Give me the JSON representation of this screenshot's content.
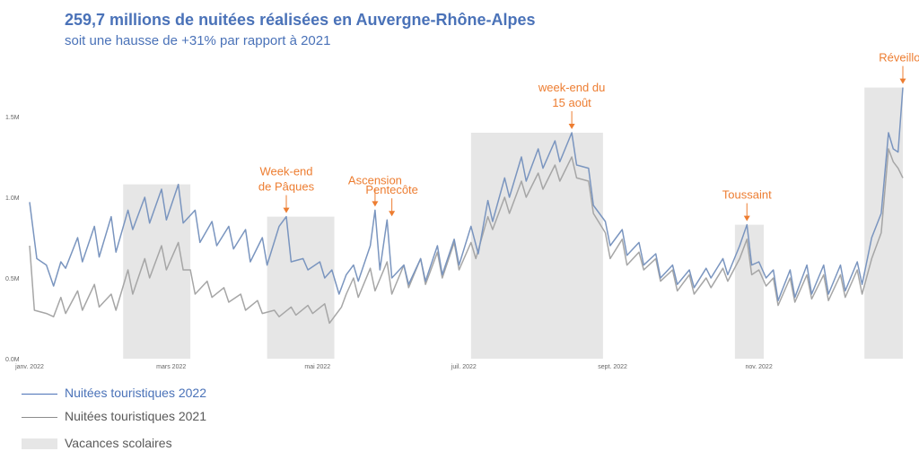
{
  "header": {
    "title": "259,7 millions de nuitées réalisées en Auvergne-Rhône-Alpes",
    "subtitle": "soit une hausse de +31% par rapport à 2021"
  },
  "legend": {
    "series_2022": "Nuitées touristiques 2022",
    "series_2021": "Nuitées touristiques 2021",
    "holidays": "Vacances scolaires"
  },
  "colors": {
    "series_2022": "#7a95bf",
    "series_2021": "#a6a6a6",
    "holidays": "#e6e6e6",
    "annotation": "#ed7d31",
    "title": "#4a72b8"
  },
  "chart_data": {
    "type": "line",
    "title": "",
    "xlabel": "",
    "ylabel": "",
    "ylim": [
      0,
      1.8
    ],
    "y_ticks": [
      "0.0M",
      "0.5M",
      "1.0M",
      "1.5M"
    ],
    "y_tick_values": [
      0,
      0.5,
      1.0,
      1.5
    ],
    "x_ticks": [
      {
        "day": 1,
        "label": "janv. 2022"
      },
      {
        "day": 60,
        "label": "mars 2022"
      },
      {
        "day": 121,
        "label": "mai 2022"
      },
      {
        "day": 182,
        "label": "juil. 2022"
      },
      {
        "day": 244,
        "label": "sept. 2022"
      },
      {
        "day": 305,
        "label": "nov. 2022"
      }
    ],
    "x_range": [
      1,
      365
    ],
    "holiday_periods": [
      {
        "start": 40,
        "end": 68,
        "top": 1.08
      },
      {
        "start": 100,
        "end": 128,
        "top": 0.88
      },
      {
        "start": 185,
        "end": 240,
        "top": 1.4
      },
      {
        "start": 295,
        "end": 307,
        "top": 0.83
      },
      {
        "start": 349,
        "end": 365,
        "top": 1.68
      }
    ],
    "series": [
      {
        "name": "Nuitées touristiques 2022",
        "points": [
          [
            1,
            0.97
          ],
          [
            4,
            0.62
          ],
          [
            8,
            0.58
          ],
          [
            11,
            0.45
          ],
          [
            14,
            0.6
          ],
          [
            16,
            0.56
          ],
          [
            21,
            0.75
          ],
          [
            23,
            0.6
          ],
          [
            28,
            0.82
          ],
          [
            30,
            0.63
          ],
          [
            35,
            0.88
          ],
          [
            37,
            0.66
          ],
          [
            42,
            0.92
          ],
          [
            44,
            0.8
          ],
          [
            49,
            1.0
          ],
          [
            51,
            0.84
          ],
          [
            56,
            1.05
          ],
          [
            58,
            0.86
          ],
          [
            63,
            1.08
          ],
          [
            65,
            0.84
          ],
          [
            70,
            0.92
          ],
          [
            72,
            0.72
          ],
          [
            77,
            0.85
          ],
          [
            79,
            0.7
          ],
          [
            84,
            0.82
          ],
          [
            86,
            0.68
          ],
          [
            91,
            0.8
          ],
          [
            93,
            0.6
          ],
          [
            98,
            0.75
          ],
          [
            100,
            0.58
          ],
          [
            105,
            0.82
          ],
          [
            108,
            0.88
          ],
          [
            110,
            0.6
          ],
          [
            115,
            0.62
          ],
          [
            117,
            0.55
          ],
          [
            122,
            0.6
          ],
          [
            124,
            0.5
          ],
          [
            127,
            0.55
          ],
          [
            130,
            0.4
          ],
          [
            133,
            0.52
          ],
          [
            136,
            0.58
          ],
          [
            138,
            0.48
          ],
          [
            143,
            0.7
          ],
          [
            145,
            0.92
          ],
          [
            147,
            0.55
          ],
          [
            150,
            0.86
          ],
          [
            152,
            0.5
          ],
          [
            157,
            0.58
          ],
          [
            159,
            0.46
          ],
          [
            164,
            0.62
          ],
          [
            166,
            0.48
          ],
          [
            171,
            0.7
          ],
          [
            173,
            0.52
          ],
          [
            178,
            0.74
          ],
          [
            180,
            0.58
          ],
          [
            185,
            0.82
          ],
          [
            188,
            0.65
          ],
          [
            192,
            0.98
          ],
          [
            194,
            0.85
          ],
          [
            199,
            1.12
          ],
          [
            201,
            1.0
          ],
          [
            206,
            1.25
          ],
          [
            208,
            1.1
          ],
          [
            213,
            1.3
          ],
          [
            215,
            1.18
          ],
          [
            220,
            1.35
          ],
          [
            222,
            1.22
          ],
          [
            227,
            1.4
          ],
          [
            229,
            1.2
          ],
          [
            234,
            1.18
          ],
          [
            236,
            0.95
          ],
          [
            241,
            0.85
          ],
          [
            243,
            0.7
          ],
          [
            248,
            0.8
          ],
          [
            250,
            0.64
          ],
          [
            255,
            0.72
          ],
          [
            257,
            0.58
          ],
          [
            262,
            0.65
          ],
          [
            264,
            0.5
          ],
          [
            269,
            0.58
          ],
          [
            271,
            0.46
          ],
          [
            276,
            0.55
          ],
          [
            278,
            0.44
          ],
          [
            283,
            0.56
          ],
          [
            285,
            0.5
          ],
          [
            290,
            0.62
          ],
          [
            292,
            0.52
          ],
          [
            297,
            0.7
          ],
          [
            300,
            0.83
          ],
          [
            302,
            0.58
          ],
          [
            305,
            0.6
          ],
          [
            308,
            0.5
          ],
          [
            311,
            0.55
          ],
          [
            313,
            0.36
          ],
          [
            318,
            0.55
          ],
          [
            320,
            0.38
          ],
          [
            325,
            0.58
          ],
          [
            327,
            0.4
          ],
          [
            332,
            0.58
          ],
          [
            334,
            0.4
          ],
          [
            339,
            0.58
          ],
          [
            341,
            0.42
          ],
          [
            346,
            0.6
          ],
          [
            348,
            0.46
          ],
          [
            352,
            0.75
          ],
          [
            356,
            0.9
          ],
          [
            359,
            1.4
          ],
          [
            361,
            1.3
          ],
          [
            363,
            1.28
          ],
          [
            365,
            1.68
          ]
        ]
      },
      {
        "name": "Nuitées touristiques 2021",
        "points": [
          [
            1,
            0.7
          ],
          [
            3,
            0.3
          ],
          [
            8,
            0.28
          ],
          [
            11,
            0.26
          ],
          [
            14,
            0.38
          ],
          [
            16,
            0.28
          ],
          [
            21,
            0.42
          ],
          [
            23,
            0.3
          ],
          [
            28,
            0.46
          ],
          [
            30,
            0.32
          ],
          [
            35,
            0.4
          ],
          [
            37,
            0.3
          ],
          [
            42,
            0.55
          ],
          [
            44,
            0.4
          ],
          [
            49,
            0.62
          ],
          [
            51,
            0.5
          ],
          [
            56,
            0.7
          ],
          [
            58,
            0.55
          ],
          [
            63,
            0.72
          ],
          [
            65,
            0.55
          ],
          [
            68,
            0.55
          ],
          [
            70,
            0.4
          ],
          [
            75,
            0.48
          ],
          [
            77,
            0.38
          ],
          [
            82,
            0.44
          ],
          [
            84,
            0.35
          ],
          [
            89,
            0.4
          ],
          [
            91,
            0.3
          ],
          [
            96,
            0.36
          ],
          [
            98,
            0.28
          ],
          [
            103,
            0.3
          ],
          [
            105,
            0.26
          ],
          [
            110,
            0.32
          ],
          [
            112,
            0.27
          ],
          [
            117,
            0.33
          ],
          [
            119,
            0.28
          ],
          [
            124,
            0.34
          ],
          [
            126,
            0.22
          ],
          [
            131,
            0.32
          ],
          [
            133,
            0.4
          ],
          [
            136,
            0.5
          ],
          [
            138,
            0.38
          ],
          [
            143,
            0.56
          ],
          [
            145,
            0.42
          ],
          [
            150,
            0.6
          ],
          [
            152,
            0.4
          ],
          [
            157,
            0.58
          ],
          [
            159,
            0.44
          ],
          [
            164,
            0.62
          ],
          [
            166,
            0.46
          ],
          [
            171,
            0.66
          ],
          [
            173,
            0.5
          ],
          [
            178,
            0.72
          ],
          [
            180,
            0.55
          ],
          [
            185,
            0.72
          ],
          [
            187,
            0.62
          ],
          [
            192,
            0.88
          ],
          [
            194,
            0.8
          ],
          [
            199,
            1.0
          ],
          [
            201,
            0.9
          ],
          [
            206,
            1.1
          ],
          [
            208,
            1.0
          ],
          [
            213,
            1.15
          ],
          [
            215,
            1.05
          ],
          [
            220,
            1.2
          ],
          [
            222,
            1.1
          ],
          [
            227,
            1.25
          ],
          [
            229,
            1.12
          ],
          [
            234,
            1.1
          ],
          [
            236,
            0.9
          ],
          [
            241,
            0.78
          ],
          [
            243,
            0.62
          ],
          [
            248,
            0.74
          ],
          [
            250,
            0.58
          ],
          [
            255,
            0.66
          ],
          [
            257,
            0.55
          ],
          [
            262,
            0.62
          ],
          [
            264,
            0.48
          ],
          [
            269,
            0.55
          ],
          [
            271,
            0.42
          ],
          [
            276,
            0.52
          ],
          [
            278,
            0.4
          ],
          [
            283,
            0.5
          ],
          [
            285,
            0.44
          ],
          [
            290,
            0.56
          ],
          [
            292,
            0.48
          ],
          [
            297,
            0.62
          ],
          [
            300,
            0.74
          ],
          [
            302,
            0.52
          ],
          [
            305,
            0.55
          ],
          [
            308,
            0.45
          ],
          [
            311,
            0.5
          ],
          [
            313,
            0.33
          ],
          [
            318,
            0.5
          ],
          [
            320,
            0.35
          ],
          [
            325,
            0.52
          ],
          [
            327,
            0.37
          ],
          [
            332,
            0.52
          ],
          [
            334,
            0.36
          ],
          [
            339,
            0.52
          ],
          [
            341,
            0.38
          ],
          [
            346,
            0.55
          ],
          [
            348,
            0.4
          ],
          [
            352,
            0.62
          ],
          [
            356,
            0.78
          ],
          [
            359,
            1.3
          ],
          [
            361,
            1.22
          ],
          [
            363,
            1.18
          ],
          [
            365,
            1.12
          ]
        ]
      }
    ],
    "annotations": [
      {
        "lines": [
          "Week-end",
          "de Pâques"
        ],
        "day": 108,
        "value": 0.88
      },
      {
        "lines": [
          "Ascension"
        ],
        "day": 145,
        "value": 0.92
      },
      {
        "lines": [
          "Pentecôte"
        ],
        "day": 152,
        "value": 0.86
      },
      {
        "lines": [
          "week-end du",
          "15 août"
        ],
        "day": 227,
        "value": 1.4
      },
      {
        "lines": [
          "Toussaint"
        ],
        "day": 300,
        "value": 0.83
      },
      {
        "lines": [
          "Réveillon"
        ],
        "day": 365,
        "value": 1.68
      }
    ]
  }
}
